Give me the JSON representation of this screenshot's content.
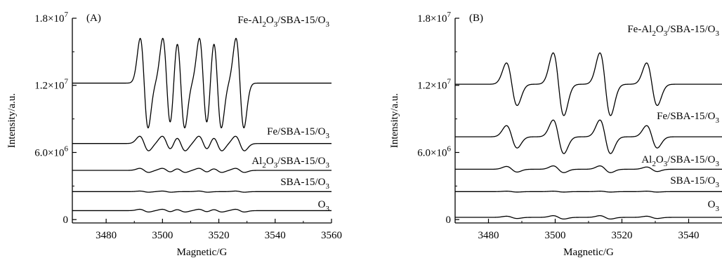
{
  "chart_data": [
    {
      "type": "line",
      "panel_label": "(A)",
      "xlabel": "Magnetic/G",
      "ylabel": "Intensity/a.u.",
      "xlim": [
        3468,
        3560
      ],
      "ylim": [
        -300000,
        18000000
      ],
      "x_ticks": [
        3480,
        3500,
        3520,
        3540,
        3560
      ],
      "x_tick_labels": [
        "3480",
        "3500",
        "3520",
        "3540",
        "3560"
      ],
      "y_ticks": [
        0,
        6000000,
        12000000,
        18000000
      ],
      "y_tick_labels": [
        {
          "main": "0",
          "sup": ""
        },
        {
          "main": "6.0×10",
          "sup": "6"
        },
        {
          "main": "1.2×10",
          "sup": "7"
        },
        {
          "main": "1.8×10",
          "sup": "7"
        }
      ],
      "series": [
        {
          "name": "Fe-Al2O3/SBA-15/O3",
          "label_parts": [
            [
              "Fe-Al",
              ""
            ],
            [
              "2",
              "sub"
            ],
            [
              "O",
              ""
            ],
            [
              "3",
              "sub"
            ],
            [
              "/SBA-15/O",
              ""
            ],
            [
              "3",
              "sub"
            ]
          ],
          "baseline": 12200000,
          "peak_centers": [
            3493.5,
            3501.5,
            3506.5,
            3514.5,
            3519.5,
            3527.5
          ],
          "peak_amplitude": 4000000,
          "peak_width": 1.4
        },
        {
          "name": "Fe/SBA-15/O3",
          "label_parts": [
            [
              "Fe/SBA-15/O",
              ""
            ],
            [
              "3",
              "sub"
            ]
          ],
          "baseline": 6800000,
          "peak_centers": [
            3493.5,
            3501.5,
            3506.5,
            3514.5,
            3519.5,
            3527.5
          ],
          "peak_amplitude": 650000,
          "peak_width": 1.6
        },
        {
          "name": "Al2O3/SBA-15/O3",
          "label_parts": [
            [
              "Al",
              ""
            ],
            [
              "2",
              "sub"
            ],
            [
              "O",
              ""
            ],
            [
              "3",
              "sub"
            ],
            [
              "/SBA-15/O",
              ""
            ],
            [
              "3",
              "sub"
            ]
          ],
          "baseline": 4400000,
          "peak_centers": [
            3493.5,
            3501.5,
            3506.5,
            3514.5,
            3519.5,
            3527.5
          ],
          "peak_amplitude": 180000,
          "peak_width": 1.6
        },
        {
          "name": "SBA-15/O3",
          "label_parts": [
            [
              "SBA-15/O",
              ""
            ],
            [
              "3",
              "sub"
            ]
          ],
          "baseline": 2500000,
          "peak_centers": [
            3493.5,
            3501.5,
            3514.5,
            3527.5
          ],
          "peak_amplitude": 50000,
          "peak_width": 1.6
        },
        {
          "name": "O3",
          "label_parts": [
            [
              "O",
              ""
            ],
            [
              "3",
              "sub"
            ]
          ],
          "baseline": 800000,
          "peak_centers": [
            3493.5,
            3501.5,
            3506.5,
            3514.5,
            3519.5,
            3527.5
          ],
          "peak_amplitude": 120000,
          "peak_width": 1.6
        }
      ]
    },
    {
      "type": "line",
      "panel_label": "(B)",
      "xlabel": "Magnetic/G",
      "ylabel": "Intensity/a.u.",
      "xlim": [
        3470,
        3550
      ],
      "ylim": [
        -300000,
        18000000
      ],
      "x_ticks": [
        3480,
        3500,
        3520,
        3540
      ],
      "x_tick_labels": [
        "3480",
        "3500",
        "3520",
        "3540"
      ],
      "y_ticks": [
        0,
        6000000,
        12000000,
        18000000
      ],
      "y_tick_labels": [
        {
          "main": "0",
          "sup": ""
        },
        {
          "main": "6.0×10",
          "sup": "6"
        },
        {
          "main": "1.2×10",
          "sup": "7"
        },
        {
          "main": "1.8×10",
          "sup": "7"
        }
      ],
      "series": [
        {
          "name": "Fe-Al2O3/SBA-15/O3",
          "label_parts": [
            [
              "Fe-Al",
              ""
            ],
            [
              "2",
              "sub"
            ],
            [
              "O",
              ""
            ],
            [
              "3",
              "sub"
            ],
            [
              "/SBA-15/O",
              ""
            ],
            [
              "3",
              "sub"
            ]
          ],
          "baseline": 12100000,
          "peak_centers": [
            3487,
            3501,
            3515,
            3529
          ],
          "peak_amplitude": 2700000,
          "peak_amplitudes": [
            1900000,
            2800000,
            2800000,
            1900000
          ],
          "peak_width": 1.6
        },
        {
          "name": "Fe/SBA-15/O3",
          "label_parts": [
            [
              "Fe/SBA-15/O",
              ""
            ],
            [
              "3",
              "sub"
            ]
          ],
          "baseline": 7400000,
          "peak_centers": [
            3487,
            3501,
            3515,
            3529
          ],
          "peak_amplitudes": [
            1000000,
            1500000,
            1500000,
            1000000
          ],
          "peak_width": 1.6
        },
        {
          "name": "Al2O3/SBA-15/O3",
          "label_parts": [
            [
              "Al",
              ""
            ],
            [
              "2",
              "sub"
            ],
            [
              "O",
              ""
            ],
            [
              "3",
              "sub"
            ],
            [
              "/SBA-15/O",
              ""
            ],
            [
              "3",
              "sub"
            ]
          ],
          "baseline": 4500000,
          "peak_centers": [
            3487,
            3501,
            3515,
            3529
          ],
          "peak_amplitudes": [
            250000,
            300000,
            300000,
            200000
          ],
          "peak_width": 1.6
        },
        {
          "name": "SBA-15/O3",
          "label_parts": [
            [
              "SBA-15/O",
              ""
            ],
            [
              "3",
              "sub"
            ]
          ],
          "baseline": 2500000,
          "peak_centers": [
            3487,
            3501,
            3515,
            3529
          ],
          "peak_amplitudes": [
            40000,
            40000,
            40000,
            40000
          ],
          "peak_width": 1.6
        },
        {
          "name": "O3",
          "label_parts": [
            [
              "O",
              ""
            ],
            [
              "3",
              "sub"
            ]
          ],
          "baseline": 200000,
          "peak_centers": [
            3487,
            3501,
            3515,
            3529
          ],
          "peak_amplitudes": [
            100000,
            150000,
            150000,
            100000
          ],
          "peak_width": 1.6
        }
      ]
    }
  ]
}
